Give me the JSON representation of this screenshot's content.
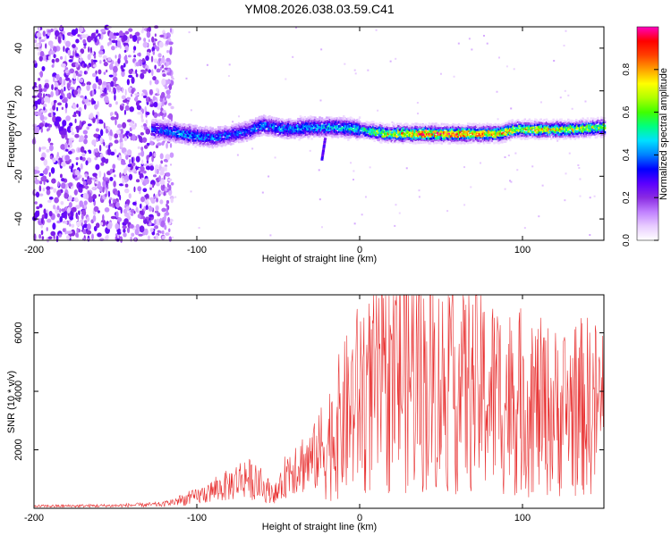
{
  "title": "YM08.2026.038.03.59.C41",
  "chart_data": [
    {
      "type": "heatmap",
      "xlabel": "Height of straight line (km)",
      "ylabel": "Frequency (Hz)",
      "xlim": [
        -200,
        150
      ],
      "ylim": [
        -50,
        50
      ],
      "xticks": [
        -200,
        -100,
        0,
        100
      ],
      "yticks": [
        -40,
        -20,
        0,
        20,
        40
      ],
      "colorbar": {
        "label": "Normalized spectral amplitude",
        "range": [
          0,
          1
        ],
        "ticks": [
          "0.0",
          "0.2",
          "0.4",
          "0.6",
          "0.8"
        ],
        "colors": [
          "#ffffff",
          "#e8ccff",
          "#c080ff",
          "#8a2be2",
          "#5a00ff",
          "#0000ff",
          "#0080ff",
          "#00e0ff",
          "#00ff80",
          "#40ff00",
          "#b0ff00",
          "#ffff00",
          "#ffa000",
          "#ff4000",
          "#ff0000",
          "#ff00c0"
        ]
      },
      "ridge": [
        {
          "x": -125,
          "freq": 2,
          "amp": 0.35
        },
        {
          "x": -110,
          "freq": 0,
          "amp": 0.42
        },
        {
          "x": -90,
          "freq": -2,
          "amp": 0.4
        },
        {
          "x": -70,
          "freq": 1,
          "amp": 0.38
        },
        {
          "x": -60,
          "freq": 4,
          "amp": 0.4
        },
        {
          "x": -45,
          "freq": 2,
          "amp": 0.42
        },
        {
          "x": -30,
          "freq": 3,
          "amp": 0.45
        },
        {
          "x": -15,
          "freq": 3,
          "amp": 0.45
        },
        {
          "x": 0,
          "freq": 2,
          "amp": 0.5
        },
        {
          "x": 15,
          "freq": 0,
          "amp": 0.7
        },
        {
          "x": 30,
          "freq": 0,
          "amp": 0.85
        },
        {
          "x": 50,
          "freq": 0,
          "amp": 0.9
        },
        {
          "x": 70,
          "freq": 0,
          "amp": 0.85
        },
        {
          "x": 85,
          "freq": 0,
          "amp": 0.8
        },
        {
          "x": 95,
          "freq": 2,
          "amp": 0.75
        },
        {
          "x": 110,
          "freq": 2,
          "amp": 0.75
        },
        {
          "x": 130,
          "freq": 2,
          "amp": 0.7
        },
        {
          "x": 150,
          "freq": 3,
          "amp": 0.65
        }
      ]
    },
    {
      "type": "line",
      "xlabel": "Height of straight line (km)",
      "ylabel": "SNR (10 * v/v)",
      "xlim": [
        -200,
        150
      ],
      "ylim": [
        0,
        7300
      ],
      "xticks": [
        -200,
        -100,
        0,
        100
      ],
      "yticks": [
        2000,
        4000,
        6000
      ],
      "color": "#e83030",
      "envelope": [
        {
          "x": -200,
          "y": 80
        },
        {
          "x": -150,
          "y": 100
        },
        {
          "x": -120,
          "y": 150
        },
        {
          "x": -100,
          "y": 400
        },
        {
          "x": -80,
          "y": 800
        },
        {
          "x": -70,
          "y": 1100
        },
        {
          "x": -60,
          "y": 700
        },
        {
          "x": -50,
          "y": 500
        },
        {
          "x": -45,
          "y": 1200
        },
        {
          "x": -40,
          "y": 1500
        },
        {
          "x": -30,
          "y": 1600
        },
        {
          "x": -20,
          "y": 2200
        },
        {
          "x": -10,
          "y": 3000
        },
        {
          "x": 0,
          "y": 3800
        },
        {
          "x": 10,
          "y": 4000
        },
        {
          "x": 20,
          "y": 4300
        },
        {
          "x": 30,
          "y": 4800
        },
        {
          "x": 40,
          "y": 4200
        },
        {
          "x": 60,
          "y": 4100
        },
        {
          "x": 80,
          "y": 3900
        },
        {
          "x": 100,
          "y": 3600
        },
        {
          "x": 120,
          "y": 3300
        },
        {
          "x": 140,
          "y": 3500
        },
        {
          "x": 150,
          "y": 3400
        }
      ]
    }
  ]
}
